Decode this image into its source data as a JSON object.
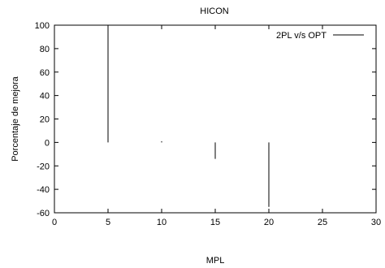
{
  "chart_data": {
    "type": "bar",
    "title": "HICON",
    "xlabel": "MPL",
    "ylabel": "Porcentaje de mejora",
    "xlim": [
      0,
      30
    ],
    "ylim": [
      -60,
      100
    ],
    "xticks": [
      0,
      5,
      10,
      15,
      20,
      25,
      30
    ],
    "yticks": [
      -60,
      -40,
      -20,
      0,
      20,
      40,
      60,
      80,
      100
    ],
    "grid": false,
    "legend_position": "top-right",
    "series": [
      {
        "name": "2PL v/s OPT",
        "color": "#000000",
        "style": "impulses",
        "x": [
          5,
          10,
          15,
          20
        ],
        "y": [
          100,
          1,
          -14,
          -55
        ]
      }
    ]
  }
}
